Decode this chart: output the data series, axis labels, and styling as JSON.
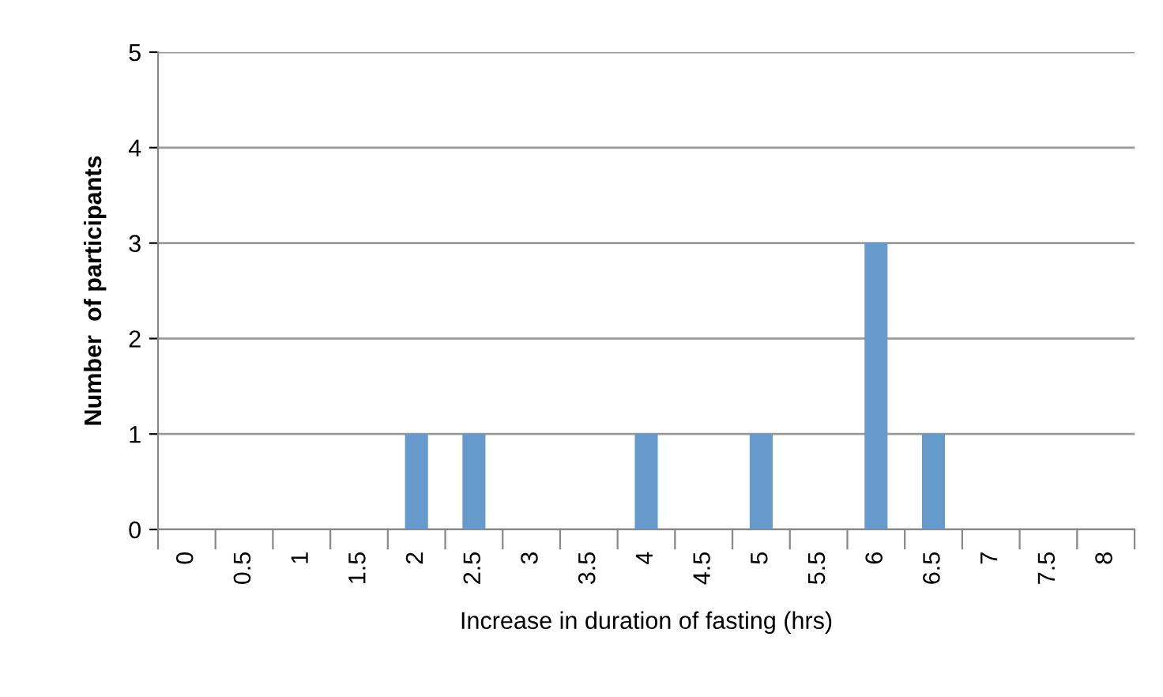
{
  "chart_data": {
    "type": "bar",
    "xlabel": "Increase in duration of fasting (hrs)",
    "ylabel": "Number  of participants",
    "categories": [
      "0",
      "0.5",
      "1",
      "1.5",
      "2",
      "2.5",
      "3",
      "3.5",
      "4",
      "4.5",
      "5",
      "5.5",
      "6",
      "6.5",
      "7",
      "7.5",
      "8"
    ],
    "values": [
      0,
      0,
      0,
      0,
      1,
      1,
      0,
      0,
      1,
      0,
      1,
      0,
      3,
      1,
      0,
      0,
      0
    ],
    "color": "#6699cc",
    "ylim": [
      0,
      5
    ],
    "yticks": [
      0,
      1,
      2,
      3,
      4,
      5
    ],
    "grid": "y",
    "legend": false
  }
}
